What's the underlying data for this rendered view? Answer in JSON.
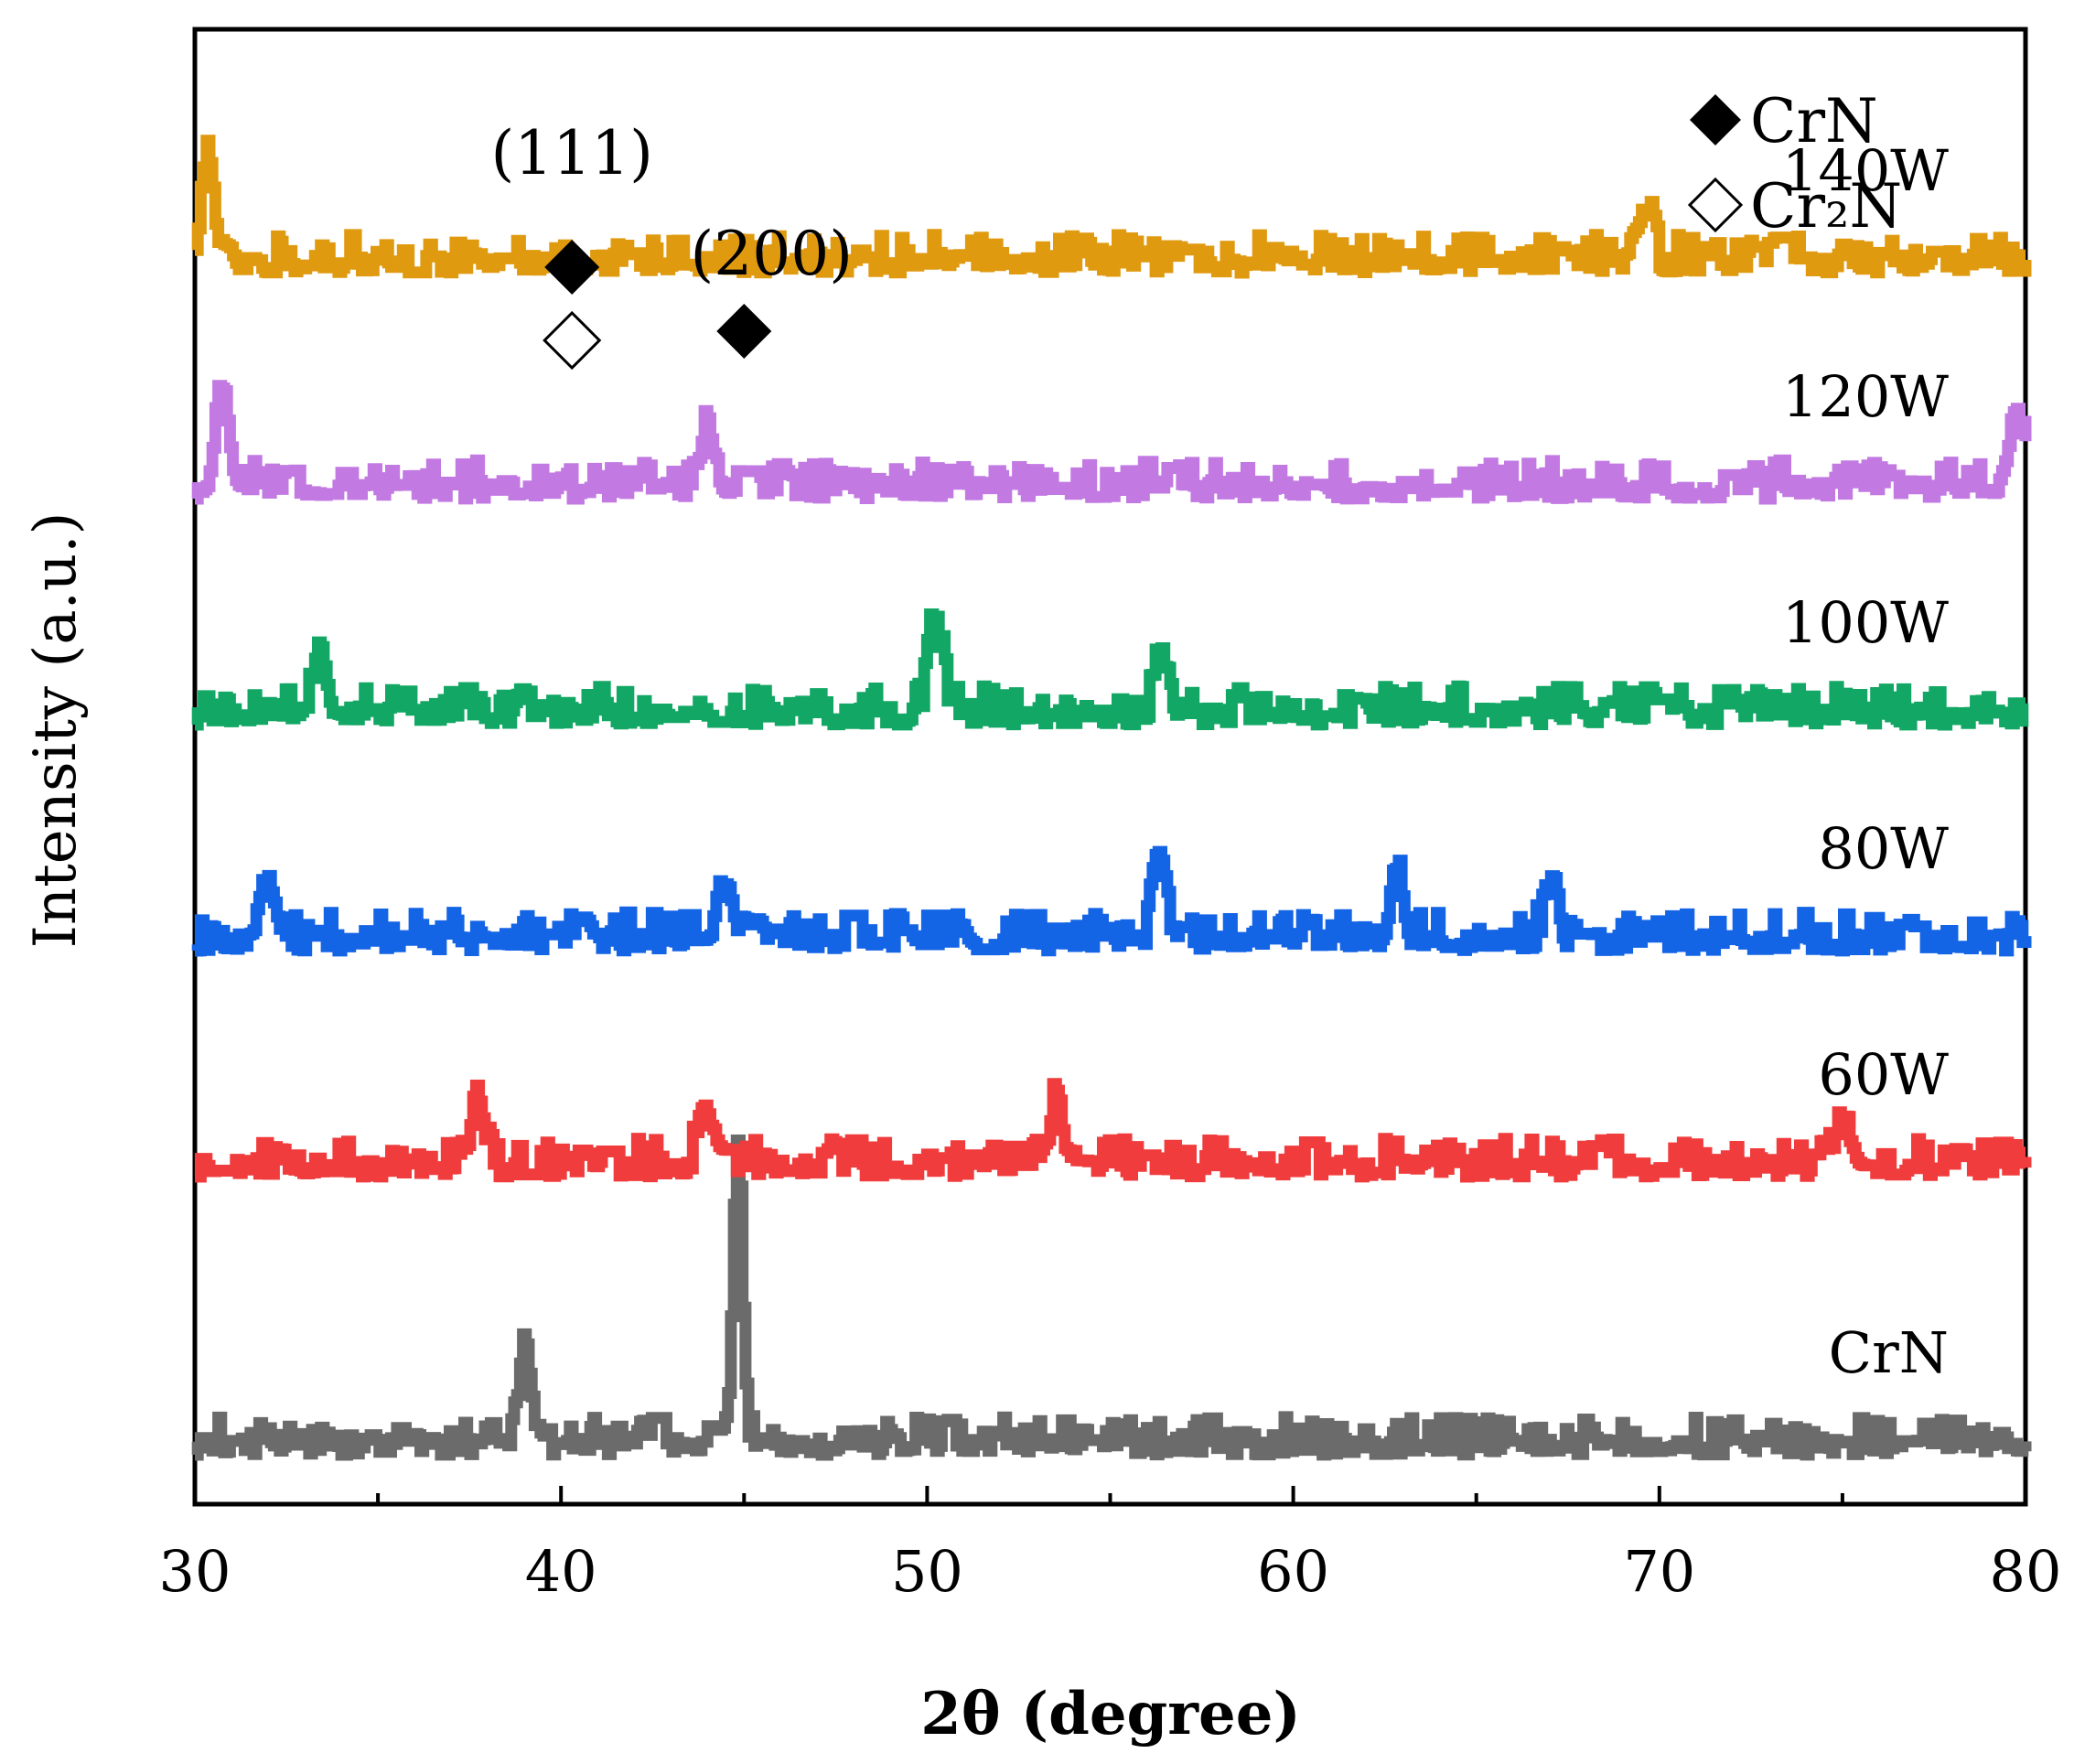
{
  "chart_data": {
    "type": "line",
    "title": "",
    "xlabel": "2θ (degree)",
    "ylabel": "Intensity (a.u.)",
    "xlim": [
      30,
      80
    ],
    "xticks": [
      30,
      40,
      50,
      60,
      70,
      80
    ],
    "y_ticks_shown": false,
    "legend": [
      {
        "label": "CrN",
        "marker": "filled-diamond"
      },
      {
        "label": "Cr₂N",
        "marker": "open-diamond"
      }
    ],
    "peak_annotations": [
      {
        "label": "(111)",
        "x": 40.3,
        "markers": [
          "filled-diamond",
          "open-diamond"
        ]
      },
      {
        "label": "(200)",
        "x": 45.0,
        "markers": [
          "filled-diamond"
        ]
      }
    ],
    "series": [
      {
        "name": "CrN",
        "color": "#6b6b6b",
        "baseline": 0.0,
        "peaks": [
          {
            "x": 39.0,
            "h": 0.55
          },
          {
            "x": 44.8,
            "h": 1.75
          }
        ]
      },
      {
        "name": "60W",
        "color": "#f03c3c",
        "baseline": 1.6,
        "peaks": [
          {
            "x": 37.7,
            "h": 0.45
          },
          {
            "x": 43.9,
            "h": 0.35
          },
          {
            "x": 53.5,
            "h": 0.4
          },
          {
            "x": 75.0,
            "h": 0.35
          }
        ]
      },
      {
        "name": "80W",
        "color": "#1464e6",
        "baseline": 2.9,
        "peaks": [
          {
            "x": 32.0,
            "h": 0.35
          },
          {
            "x": 44.5,
            "h": 0.35
          },
          {
            "x": 56.3,
            "h": 0.35
          },
          {
            "x": 62.8,
            "h": 0.45
          },
          {
            "x": 67.0,
            "h": 0.35
          }
        ]
      },
      {
        "name": "100W",
        "color": "#12a764",
        "baseline": 4.2,
        "peaks": [
          {
            "x": 33.4,
            "h": 0.4
          },
          {
            "x": 50.2,
            "h": 0.55
          },
          {
            "x": 56.4,
            "h": 0.35
          }
        ]
      },
      {
        "name": "120W",
        "color": "#c27ae2",
        "baseline": 5.5,
        "peaks": [
          {
            "x": 30.7,
            "h": 0.6
          },
          {
            "x": 44.0,
            "h": 0.35
          },
          {
            "x": 79.7,
            "h": 0.5
          }
        ]
      },
      {
        "name": "140W",
        "color": "#e09a10",
        "baseline": 6.8,
        "peaks": [
          {
            "x": 30.3,
            "h": 0.55
          },
          {
            "x": 69.6,
            "h": 0.3
          }
        ]
      }
    ]
  }
}
